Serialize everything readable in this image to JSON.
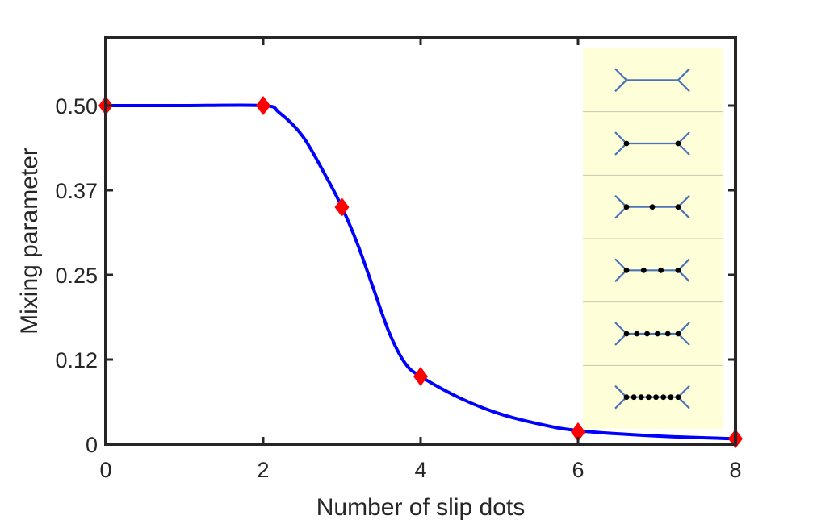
{
  "chart_data": {
    "type": "line",
    "xlabel": "Number of slip dots",
    "ylabel": "Mixing parameter",
    "xlim": [
      0,
      8
    ],
    "ylim": [
      0,
      0.6
    ],
    "x_ticks": [
      "0",
      "2",
      "4",
      "6",
      "8"
    ],
    "y_ticks": [
      "0",
      "0.12",
      "0.25",
      "0.37",
      "0.50"
    ],
    "y_tick_values": [
      0,
      0.125,
      0.25,
      0.375,
      0.5
    ],
    "series": [
      {
        "style": "markers",
        "color": "#ff0000",
        "marker": "diamond",
        "x": [
          0,
          2,
          3,
          4,
          6,
          8
        ],
        "y": [
          0.5,
          0.5,
          0.35,
          0.1,
          0.018,
          0.008
        ]
      },
      {
        "style": "smooth-line",
        "color": "#0000ff",
        "x": [
          0,
          1,
          2,
          2.2,
          2.5,
          2.8,
          3.0,
          3.2,
          3.4,
          3.6,
          3.8,
          4.0,
          4.5,
          5.0,
          5.5,
          6.0,
          7.0,
          8.0
        ],
        "y": [
          0.5,
          0.5,
          0.5,
          0.49,
          0.455,
          0.395,
          0.35,
          0.295,
          0.23,
          0.165,
          0.12,
          0.1,
          0.068,
          0.045,
          0.03,
          0.02,
          0.012,
          0.008
        ]
      }
    ],
    "grid": false,
    "inset": {
      "background": "#fefed8",
      "panels": [
        {
          "dots": 0
        },
        {
          "dots": 2
        },
        {
          "dots": 3
        },
        {
          "dots": 4
        },
        {
          "dots": 6
        },
        {
          "dots": 8
        }
      ]
    }
  }
}
